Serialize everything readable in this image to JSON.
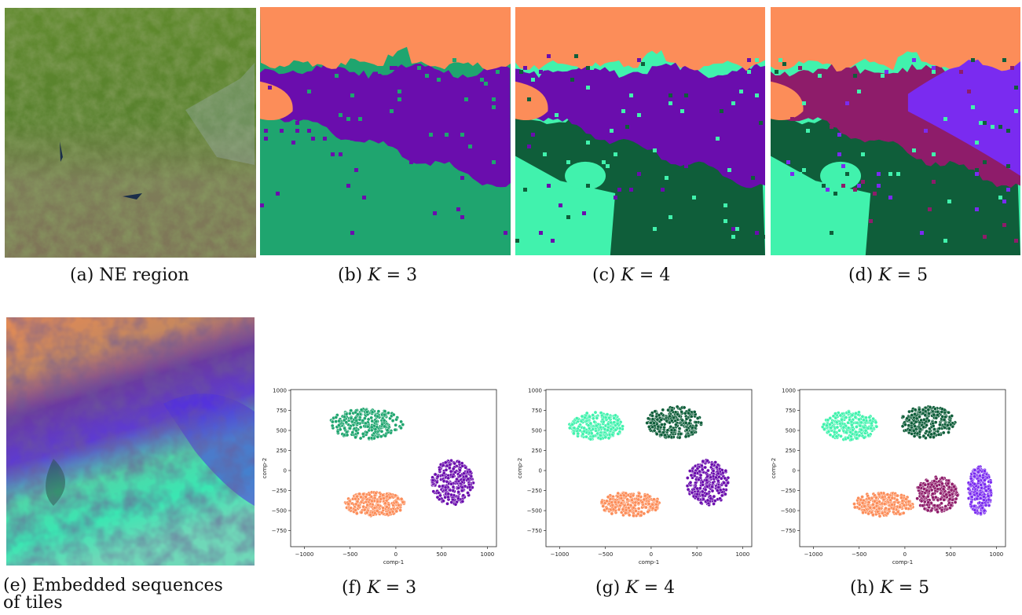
{
  "colors": {
    "orange": "#fc8d59",
    "purple": "#6a0dad",
    "green": "#1fa56f",
    "mint": "#41f2ad",
    "dark_green": "#0f5e3a",
    "maroon": "#8e1c6a",
    "violet": "#7a2bf0"
  },
  "captions": {
    "a": "(a) NE region",
    "b_prefix": "(b) ",
    "b_k": "K",
    "b_eq": " = 3",
    "c_prefix": "(c) ",
    "c_k": "K",
    "c_eq": " = 4",
    "d_prefix": "(d) ",
    "d_k": "K",
    "d_eq": " = 5",
    "e": "(e) Embedded sequences of tiles",
    "f_prefix": "(f) ",
    "f_k": "K",
    "f_eq": " = 3",
    "g_prefix": "(g) ",
    "g_k": "K",
    "g_eq": " = 4",
    "h_prefix": "(h) ",
    "h_k": "K",
    "h_eq": " = 5"
  },
  "chart_data": [
    {
      "type": "scatter",
      "panel": "f",
      "xlabel": "comp-1",
      "ylabel": "comp-2",
      "xlim": [
        -1150,
        1100
      ],
      "ylim": [
        -950,
        1010
      ],
      "xticks": [
        -1000,
        -500,
        0,
        500,
        1000
      ],
      "yticks": [
        1000,
        750,
        500,
        250,
        0,
        -250,
        -500,
        -750
      ],
      "grid": false,
      "clusters": [
        {
          "color": "green",
          "center": [
            -320,
            580
          ],
          "spread": [
            400,
            190
          ]
        },
        {
          "color": "purple",
          "center": [
            620,
            -150
          ],
          "spread": [
            230,
            280
          ]
        },
        {
          "color": "orange",
          "center": [
            -230,
            -420
          ],
          "spread": [
            330,
            150
          ]
        }
      ]
    },
    {
      "type": "scatter",
      "panel": "g",
      "xlabel": "comp-1",
      "ylabel": "comp-2",
      "xlim": [
        -1150,
        1100
      ],
      "ylim": [
        -950,
        1010
      ],
      "xticks": [
        -1000,
        -500,
        0,
        500,
        1000
      ],
      "yticks": [
        1000,
        750,
        500,
        250,
        0,
        -250,
        -500,
        -750
      ],
      "grid": false,
      "clusters": [
        {
          "color": "mint",
          "center": [
            -600,
            560
          ],
          "spread": [
            300,
            180
          ]
        },
        {
          "color": "dark_green",
          "center": [
            250,
            600
          ],
          "spread": [
            300,
            200
          ]
        },
        {
          "color": "purple",
          "center": [
            620,
            -150
          ],
          "spread": [
            230,
            280
          ]
        },
        {
          "color": "orange",
          "center": [
            -230,
            -420
          ],
          "spread": [
            330,
            150
          ]
        }
      ]
    },
    {
      "type": "scatter",
      "panel": "h",
      "xlabel": "comp-1",
      "ylabel": "comp-2",
      "xlim": [
        -1150,
        1100
      ],
      "ylim": [
        -950,
        1010
      ],
      "xticks": [
        -1000,
        -500,
        0,
        500,
        1000
      ],
      "yticks": [
        1000,
        750,
        500,
        250,
        0,
        -250,
        -500,
        -750
      ],
      "grid": false,
      "clusters": [
        {
          "color": "mint",
          "center": [
            -600,
            560
          ],
          "spread": [
            300,
            180
          ]
        },
        {
          "color": "dark_green",
          "center": [
            250,
            600
          ],
          "spread": [
            300,
            200
          ]
        },
        {
          "color": "maroon",
          "center": [
            350,
            -300
          ],
          "spread": [
            230,
            220
          ]
        },
        {
          "color": "violet",
          "center": [
            820,
            -250
          ],
          "spread": [
            130,
            300
          ]
        },
        {
          "color": "orange",
          "center": [
            -230,
            -420
          ],
          "spread": [
            330,
            150
          ]
        }
      ]
    }
  ]
}
